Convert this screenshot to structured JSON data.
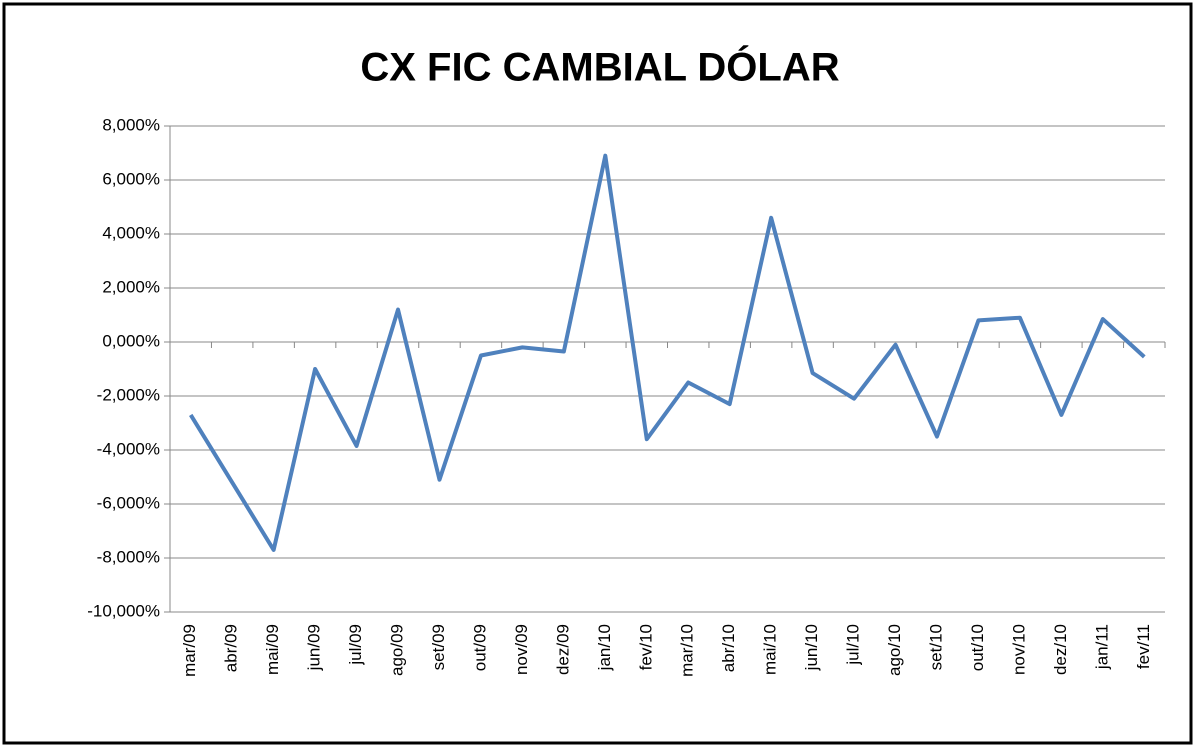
{
  "chart_data": {
    "type": "line",
    "title": "CX FIC CAMBIAL DÓLAR",
    "categories": [
      "mar/09",
      "abr/09",
      "mai/09",
      "jun/09",
      "jul/09",
      "ago/09",
      "set/09",
      "out/09",
      "nov/09",
      "dez/09",
      "jan/10",
      "fev/10",
      "mar/10",
      "abr/10",
      "mai/10",
      "jun/10",
      "jul/10",
      "ago/10",
      "set/10",
      "out/10",
      "nov/10",
      "dez/10",
      "jan/11",
      "fev/11"
    ],
    "series": [
      {
        "name": "CX FIC CAMBIAL DÓLAR",
        "color": "#4f81bd",
        "values": [
          -2.7,
          -5.2,
          -7.7,
          -1.0,
          -3.85,
          1.2,
          -5.1,
          -0.5,
          -0.2,
          -0.35,
          6.9,
          -3.6,
          -1.5,
          -2.3,
          4.6,
          -1.15,
          -2.1,
          -0.1,
          -3.5,
          0.8,
          0.9,
          -2.7,
          0.85,
          -0.55
        ]
      }
    ],
    "ylim": [
      -10,
      8
    ],
    "yticks": [
      {
        "value": -10,
        "label": "-10,000%"
      },
      {
        "value": -8,
        "label": "-8,000%"
      },
      {
        "value": -6,
        "label": "-6,000%"
      },
      {
        "value": -4,
        "label": "-4,000%"
      },
      {
        "value": -2,
        "label": "-2,000%"
      },
      {
        "value": 0,
        "label": "0,000%"
      },
      {
        "value": 2,
        "label": "2,000%"
      },
      {
        "value": 4,
        "label": "4,000%"
      },
      {
        "value": 6,
        "label": "6,000%"
      },
      {
        "value": 8,
        "label": "8,000%"
      }
    ],
    "grid": true
  }
}
